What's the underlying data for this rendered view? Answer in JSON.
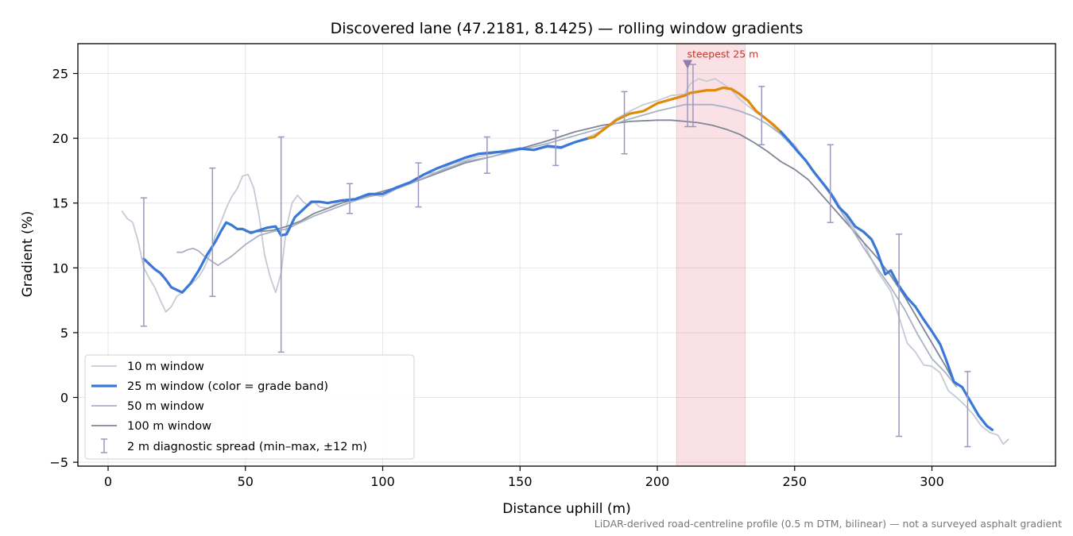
{
  "chart_data": {
    "type": "line",
    "title": "Discovered lane (47.2181, 8.1425) — rolling window gradients",
    "xlabel": "Distance uphill (m)",
    "ylabel": "Gradient (%)",
    "xlim": [
      -11,
      345
    ],
    "ylim": [
      -5.3,
      27.3
    ],
    "x_ticks": [
      0,
      50,
      100,
      150,
      200,
      250,
      300
    ],
    "y_ticks": [
      -5,
      0,
      5,
      10,
      15,
      20,
      25
    ],
    "grid": true,
    "legend_position": "lower-left",
    "footnote": "LiDAR-derived road-centreline profile (0.5 m DTM, bilinear) — not a surveyed asphalt gradient",
    "steepest_band": {
      "x_start": 207,
      "x_end": 232,
      "label": "steepest 25 m",
      "marker_x": 211,
      "marker_y": 25.8
    },
    "series": [
      {
        "name": "10 m window",
        "color": "#c5cad6",
        "x": [
          5,
          7,
          9,
          11,
          13,
          15,
          17,
          19,
          21,
          23,
          25,
          27,
          29,
          31,
          33,
          35,
          37,
          39,
          41,
          43,
          45,
          47,
          49,
          51,
          53,
          55,
          57,
          59,
          61,
          63,
          65,
          67,
          69,
          71,
          73,
          75,
          77,
          80,
          85,
          90,
          95,
          100,
          105,
          110,
          115,
          120,
          125,
          130,
          135,
          140,
          145,
          150,
          155,
          160,
          165,
          170,
          175,
          180,
          185,
          190,
          195,
          200,
          205,
          210,
          212,
          215,
          218,
          221,
          224,
          227,
          230,
          233,
          236,
          240,
          245,
          250,
          255,
          260,
          265,
          270,
          275,
          280,
          285,
          288,
          291,
          294,
          297,
          300,
          303,
          306,
          309,
          312,
          315,
          318,
          321,
          324,
          326,
          328
        ],
        "y": [
          14.4,
          13.8,
          13.5,
          12,
          10,
          9.2,
          8.5,
          7.5,
          6.6,
          7.0,
          7.8,
          8.1,
          8.5,
          8.9,
          9.3,
          10,
          11,
          12.5,
          13.5,
          14.6,
          15.5,
          16.1,
          17.1,
          17.2,
          16.2,
          14,
          11,
          9.3,
          8.1,
          9.6,
          13.2,
          15,
          15.6,
          15.1,
          14.8,
          15.1,
          14.7,
          14.6,
          15.2,
          15.3,
          15.7,
          15.5,
          16.1,
          16.5,
          17.2,
          17.4,
          18,
          18.3,
          18.6,
          18.8,
          19.1,
          19.2,
          19.1,
          19.3,
          19.2,
          19.7,
          20.1,
          20.6,
          21.5,
          22.1,
          22.6,
          22.9,
          23.3,
          23.4,
          24.2,
          24.6,
          24.4,
          24.6,
          24.2,
          23.7,
          23,
          22.5,
          22,
          21.4,
          20.3,
          19.5,
          18,
          16.7,
          15.3,
          13.5,
          12,
          9.8,
          8.2,
          6.2,
          4.2,
          3.5,
          2.5,
          2.4,
          1.9,
          0.5,
          0,
          -0.6,
          -1.3,
          -2.2,
          -2.7,
          -2.9,
          -3.6,
          -3.2
        ]
      },
      {
        "name": "25 m window (color = grade band)",
        "color": "#3a78d8",
        "band_color": "#e08a0b",
        "band_range": [
          177,
          245
        ],
        "x": [
          13,
          15,
          17,
          19,
          21,
          23,
          25,
          27,
          30,
          33,
          36,
          39,
          41,
          43,
          45,
          47,
          49,
          52,
          55,
          58,
          61,
          63,
          65,
          68,
          71,
          74,
          77,
          80,
          85,
          90,
          95,
          100,
          105,
          110,
          115,
          120,
          125,
          130,
          135,
          140,
          145,
          150,
          155,
          160,
          165,
          170,
          175,
          177,
          180,
          185,
          190,
          195,
          200,
          205,
          210,
          212,
          215,
          218,
          221,
          224,
          227,
          230,
          233,
          236,
          239,
          242,
          245,
          248,
          251,
          254,
          257,
          260,
          263,
          266,
          269,
          272,
          275,
          278,
          280,
          283,
          285,
          288,
          291,
          294,
          297,
          300,
          303,
          305,
          308,
          311,
          314,
          317,
          320,
          322
        ],
        "y": [
          10.7,
          10.3,
          9.9,
          9.6,
          9.1,
          8.5,
          8.3,
          8.1,
          8.8,
          9.8,
          11,
          12,
          12.8,
          13.5,
          13.3,
          13,
          13,
          12.7,
          12.9,
          13.1,
          13.2,
          12.5,
          12.6,
          13.9,
          14.5,
          15.1,
          15.1,
          15,
          15.2,
          15.3,
          15.7,
          15.7,
          16.2,
          16.6,
          17.2,
          17.7,
          18.1,
          18.5,
          18.8,
          18.9,
          19,
          19.2,
          19.1,
          19.4,
          19.3,
          19.7,
          20,
          20.1,
          20.6,
          21.4,
          21.9,
          22.1,
          22.7,
          23,
          23.3,
          23.5,
          23.6,
          23.7,
          23.7,
          23.9,
          23.8,
          23.4,
          22.9,
          22.1,
          21.6,
          21.1,
          20.5,
          19.8,
          19,
          18.3,
          17.4,
          16.6,
          15.8,
          14.7,
          14.1,
          13.2,
          12.8,
          12.2,
          11.3,
          9.5,
          9.8,
          8.6,
          7.7,
          7,
          6,
          5.1,
          4.1,
          3,
          1.2,
          0.8,
          -0.3,
          -1.4,
          -2.2,
          -2.5
        ]
      },
      {
        "name": "50 m window",
        "color": "#a9b1c4",
        "x": [
          25,
          27,
          29,
          31,
          33,
          35,
          40,
          45,
          50,
          55,
          60,
          65,
          70,
          75,
          80,
          85,
          90,
          95,
          100,
          110,
          120,
          130,
          140,
          150,
          160,
          170,
          180,
          190,
          200,
          210,
          220,
          225,
          230,
          235,
          240,
          245,
          250,
          255,
          260,
          265,
          270,
          275,
          280,
          285,
          290,
          295,
          300,
          305,
          309
        ],
        "y": [
          11.2,
          11.2,
          11.4,
          11.5,
          11.3,
          10.9,
          10.2,
          10.9,
          11.8,
          12.5,
          12.8,
          13,
          13.5,
          14,
          14.4,
          14.8,
          15.2,
          15.5,
          15.7,
          16.5,
          17.4,
          18.2,
          18.6,
          19.1,
          19.6,
          20.2,
          20.8,
          21.5,
          22.1,
          22.6,
          22.6,
          22.4,
          22.1,
          21.7,
          21.1,
          20.3,
          19.2,
          18,
          16.6,
          15,
          13.3,
          11.6,
          10,
          8.5,
          6.8,
          4.8,
          3,
          1.9,
          0.8
        ]
      },
      {
        "name": "100 m window",
        "color": "#7f8797",
        "x": [
          50,
          55,
          60,
          65,
          70,
          75,
          80,
          85,
          90,
          95,
          100,
          110,
          120,
          130,
          140,
          150,
          160,
          170,
          180,
          190,
          200,
          205,
          210,
          215,
          220,
          225,
          230,
          235,
          240,
          245,
          250,
          255,
          260,
          265,
          270,
          275,
          280,
          285,
          290,
          295,
          300,
          305,
          309
        ],
        "y": [
          12.8,
          12.8,
          12.9,
          13.2,
          13.6,
          14.2,
          14.6,
          15,
          15.3,
          15.6,
          15.9,
          16.5,
          17.3,
          18.1,
          18.6,
          19.2,
          19.8,
          20.5,
          21,
          21.3,
          21.4,
          21.4,
          21.3,
          21.2,
          21,
          20.7,
          20.3,
          19.7,
          19,
          18.2,
          17.6,
          16.8,
          15.6,
          14.4,
          13.2,
          12,
          10.8,
          9.4,
          7.8,
          6,
          4.2,
          2.4,
          0.8
        ]
      }
    ],
    "error_bars": {
      "name": "2 m diagnostic spread (min–max, ±12 m)",
      "color": "#9a98bd",
      "points": [
        {
          "x": 13,
          "low": 5.5,
          "high": 15.4
        },
        {
          "x": 38,
          "low": 7.8,
          "high": 17.7
        },
        {
          "x": 63,
          "low": 3.5,
          "high": 20.1
        },
        {
          "x": 88,
          "low": 14.2,
          "high": 16.5
        },
        {
          "x": 113,
          "low": 14.7,
          "high": 18.1
        },
        {
          "x": 138,
          "low": 17.3,
          "high": 20.1
        },
        {
          "x": 163,
          "low": 17.9,
          "high": 20.6
        },
        {
          "x": 188,
          "low": 18.8,
          "high": 23.6
        },
        {
          "x": 211,
          "low": 20.9,
          "high": 25.8
        },
        {
          "x": 213,
          "low": 20.9,
          "high": 25.7
        },
        {
          "x": 238,
          "low": 19.5,
          "high": 24
        },
        {
          "x": 263,
          "low": 13.5,
          "high": 19.5
        },
        {
          "x": 288,
          "low": -3,
          "high": 12.6
        },
        {
          "x": 313,
          "low": -3.8,
          "high": 2
        }
      ]
    }
  }
}
